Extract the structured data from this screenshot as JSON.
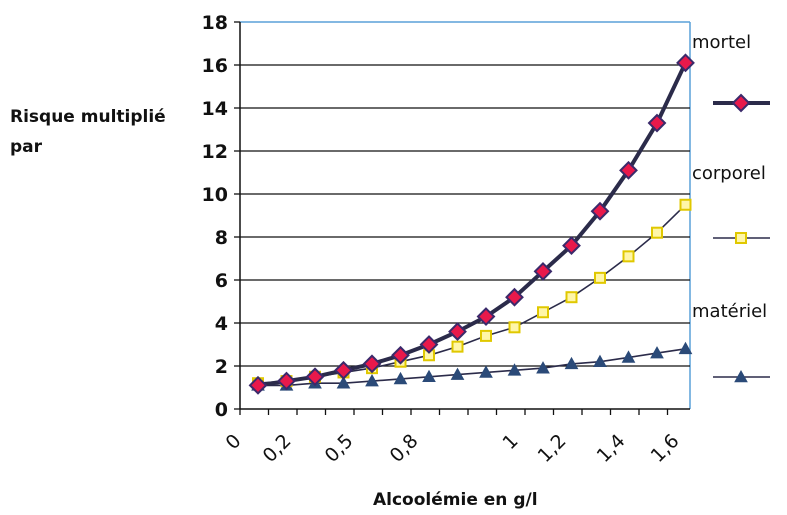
{
  "chart_data": {
    "type": "line",
    "ylabel": "Risque multiplié par",
    "xlabel": "Alcoolémie en g/l",
    "ylim": [
      0,
      18
    ],
    "yticks": [
      0,
      2,
      4,
      6,
      8,
      10,
      12,
      14,
      16,
      18
    ],
    "xtick_labels": [
      "0",
      "0,2",
      "0,5",
      "0,8",
      "1",
      "1,2",
      "1,4",
      "1,6"
    ],
    "grid": true,
    "legend_position": "right",
    "x": [
      0.1,
      0.2,
      0.3,
      0.4,
      0.5,
      0.6,
      0.7,
      0.8,
      0.9,
      1.0,
      1.1,
      1.2,
      1.3,
      1.4,
      1.5,
      1.6
    ],
    "series": [
      {
        "name": "mortel",
        "marker": "diamond",
        "line_color": "#2b2b4a",
        "marker_fill": "#e8194b",
        "values": [
          1.1,
          1.3,
          1.5,
          1.8,
          2.1,
          2.5,
          3.0,
          3.6,
          4.3,
          5.2,
          6.4,
          7.6,
          9.2,
          11.1,
          13.3,
          16.1
        ]
      },
      {
        "name": "corporel",
        "marker": "square",
        "line_color": "#2b2b4a",
        "marker_fill": "#fff6a8",
        "marker_edge": "#e0c800",
        "values": [
          1.2,
          1.3,
          1.5,
          1.7,
          1.9,
          2.2,
          2.5,
          2.9,
          3.4,
          3.8,
          4.5,
          5.2,
          6.1,
          7.1,
          8.2,
          9.5
        ]
      },
      {
        "name": "matériel",
        "marker": "triangle",
        "line_color": "#2b2b4a",
        "marker_fill": "#2b4a78",
        "values": [
          1.1,
          1.1,
          1.2,
          1.2,
          1.3,
          1.4,
          1.5,
          1.6,
          1.7,
          1.8,
          1.9,
          2.1,
          2.2,
          2.4,
          2.6,
          2.8
        ]
      }
    ]
  },
  "colors": {
    "plot_border": "#5aa0d8",
    "grid": "#111111",
    "axis": "#111111"
  }
}
